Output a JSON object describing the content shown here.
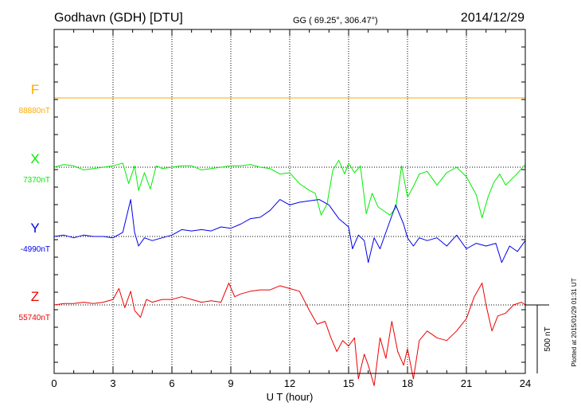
{
  "chart_data": {
    "type": "line",
    "title": "Godhavn (GDH)  [DTU]",
    "subtitle": "GG ( 69.25°, 306.47°)",
    "date": "2014/12/29",
    "xlabel": "U T (hour)",
    "xlim": [
      0,
      24
    ],
    "x_ticks": [
      0,
      3,
      6,
      9,
      12,
      15,
      18,
      21,
      24
    ],
    "grid": true,
    "scale_bar": {
      "label": "500 nT",
      "value_nT": 500
    },
    "footer": "Plotted at 2015/01/29 01:31  UT",
    "series": [
      {
        "name": "F",
        "baseline_label": "88880nT",
        "color": "#ffaa00",
        "baseline_nT": 88880,
        "x": [
          0,
          24
        ],
        "y": [
          88880,
          88880
        ]
      },
      {
        "name": "X",
        "baseline_label": "7370nT",
        "color": "#00ee00",
        "baseline_nT": 7370,
        "x": [
          0,
          0.5,
          1,
          1.5,
          2,
          2.5,
          3,
          3.5,
          3.8,
          4.1,
          4.3,
          4.6,
          4.9,
          5.2,
          5.5,
          6,
          6.5,
          7,
          7.5,
          8,
          8.5,
          9,
          9.5,
          10,
          10.5,
          11,
          11.5,
          12,
          12.5,
          13,
          13.3,
          13.6,
          13.9,
          14.2,
          14.5,
          14.8,
          15,
          15.3,
          15.6,
          15.9,
          16.2,
          16.5,
          16.8,
          17.1,
          17.4,
          17.7,
          18,
          18.3,
          18.6,
          19,
          19.5,
          20,
          20.5,
          21,
          21.5,
          21.8,
          22.1,
          22.4,
          22.7,
          23,
          23.5,
          24
        ],
        "y": [
          7370,
          7390,
          7380,
          7350,
          7360,
          7370,
          7380,
          7400,
          7250,
          7380,
          7200,
          7330,
          7210,
          7380,
          7360,
          7370,
          7380,
          7380,
          7350,
          7360,
          7370,
          7380,
          7380,
          7390,
          7370,
          7360,
          7320,
          7330,
          7250,
          7200,
          7180,
          7020,
          7100,
          7350,
          7420,
          7320,
          7400,
          7330,
          7380,
          7030,
          7180,
          7080,
          7050,
          7020,
          7070,
          7380,
          7150,
          7230,
          7320,
          7340,
          7240,
          7330,
          7370,
          7300,
          7170,
          7000,
          7150,
          7260,
          7320,
          7240,
          7310,
          7390
        ]
      },
      {
        "name": "Y",
        "baseline_label": "-4990nT",
        "color": "#0000ee",
        "baseline_nT": -4990,
        "x": [
          0,
          0.5,
          1,
          1.5,
          2,
          2.5,
          3,
          3.5,
          3.9,
          4.1,
          4.3,
          4.6,
          5,
          5.5,
          6,
          6.5,
          7,
          7.5,
          8,
          8.5,
          9,
          9.5,
          10,
          10.5,
          11,
          11.5,
          12,
          12.5,
          13,
          13.5,
          14,
          14.5,
          15,
          15.2,
          15.5,
          15.8,
          16,
          16.3,
          16.6,
          17,
          17.4,
          17.8,
          18,
          18.3,
          18.6,
          19,
          19.5,
          20,
          20.5,
          21,
          21.5,
          22,
          22.5,
          22.8,
          23.2,
          23.6,
          24
        ],
        "y": [
          -4990,
          -4980,
          -5000,
          -4980,
          -4990,
          -4990,
          -5000,
          -4960,
          -4720,
          -4960,
          -5060,
          -5000,
          -5020,
          -5000,
          -4980,
          -4940,
          -4950,
          -4940,
          -4950,
          -4920,
          -4930,
          -4900,
          -4860,
          -4850,
          -4800,
          -4720,
          -4760,
          -4740,
          -4730,
          -4720,
          -4760,
          -4860,
          -4920,
          -5080,
          -4980,
          -5020,
          -5180,
          -5000,
          -5080,
          -4920,
          -4760,
          -4900,
          -5000,
          -5060,
          -5000,
          -5020,
          -5000,
          -5060,
          -4980,
          -5080,
          -5040,
          -5060,
          -5040,
          -5180,
          -5060,
          -5100,
          -5020
        ]
      },
      {
        "name": "Z",
        "baseline_label": "55740nT",
        "color": "#ee0000",
        "baseline_nT": 55740,
        "x": [
          0,
          0.5,
          1,
          1.5,
          2,
          2.5,
          3,
          3.3,
          3.6,
          3.9,
          4.1,
          4.4,
          4.7,
          5,
          5.5,
          6,
          6.5,
          7,
          7.5,
          8,
          8.5,
          8.9,
          9.2,
          9.5,
          10,
          10.5,
          11,
          11.5,
          12,
          12.5,
          13,
          13.4,
          13.8,
          14.1,
          14.4,
          14.7,
          15,
          15.3,
          15.5,
          15.8,
          16,
          16.3,
          16.6,
          16.9,
          17.2,
          17.5,
          17.8,
          18,
          18.3,
          18.6,
          19,
          19.5,
          20,
          20.5,
          21,
          21.4,
          21.8,
          22,
          22.3,
          22.6,
          23,
          23.4,
          23.8,
          24
        ],
        "y": [
          55740,
          55750,
          55750,
          55760,
          55750,
          55760,
          55780,
          55860,
          55720,
          55840,
          55700,
          55650,
          55780,
          55760,
          55780,
          55780,
          55800,
          55780,
          55760,
          55770,
          55760,
          55900,
          55800,
          55820,
          55840,
          55850,
          55850,
          55880,
          55860,
          55840,
          55700,
          55600,
          55620,
          55500,
          55400,
          55480,
          55440,
          55500,
          55200,
          55380,
          55300,
          55150,
          55500,
          55350,
          55620,
          55400,
          55300,
          55420,
          55200,
          55480,
          55550,
          55500,
          55480,
          55550,
          55640,
          55800,
          55900,
          55740,
          55550,
          55660,
          55680,
          55740,
          55760,
          55740
        ]
      }
    ]
  }
}
